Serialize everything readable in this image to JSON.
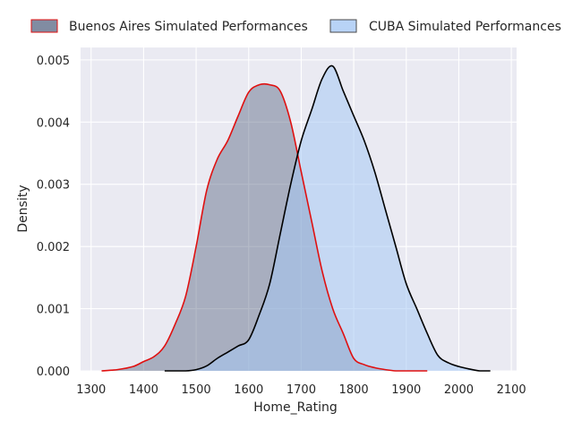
{
  "chart_data": {
    "type": "area",
    "title": "",
    "xlabel": "Home_Rating",
    "ylabel": "Density",
    "xlim": [
      1280,
      2110
    ],
    "ylim": [
      0,
      0.0052
    ],
    "xticks": [
      1300,
      1400,
      1500,
      1600,
      1700,
      1800,
      1900,
      2000,
      2100
    ],
    "xtick_labels": [
      "1300",
      "1400",
      "1500",
      "1600",
      "1700",
      "1800",
      "1900",
      "2000",
      "2100"
    ],
    "yticks": [
      0,
      0.001,
      0.002,
      0.003,
      0.004,
      0.005
    ],
    "ytick_labels": [
      "0.000",
      "0.001",
      "0.002",
      "0.003",
      "0.004",
      "0.005"
    ],
    "grid": true,
    "legend_position": "top",
    "series": [
      {
        "name": "Buenos Aires Simulated Performances",
        "fill": "#4c5b7a",
        "fill_opacity": 0.42,
        "line": "#e01010",
        "x": [
          1320,
          1350,
          1380,
          1400,
          1420,
          1440,
          1460,
          1480,
          1500,
          1520,
          1540,
          1560,
          1580,
          1600,
          1620,
          1640,
          1660,
          1680,
          1700,
          1720,
          1740,
          1760,
          1780,
          1800,
          1820,
          1840,
          1860,
          1880,
          1900,
          1920,
          1940
        ],
        "y": [
          0.0,
          2e-05,
          7e-05,
          0.00015,
          0.00023,
          0.0004,
          0.00075,
          0.0012,
          0.002,
          0.0029,
          0.0034,
          0.0037,
          0.0041,
          0.00448,
          0.0046,
          0.0046,
          0.0045,
          0.004,
          0.0032,
          0.0024,
          0.0016,
          0.001,
          0.0006,
          0.0002,
          0.0001,
          5e-05,
          2e-05,
          0.0,
          0.0,
          0.0,
          0.0
        ]
      },
      {
        "name": "CUBA Simulated Performances",
        "fill": "#a6c8f4",
        "fill_opacity": 0.55,
        "line": "#000000",
        "x": [
          1440,
          1480,
          1500,
          1520,
          1540,
          1560,
          1580,
          1600,
          1620,
          1640,
          1660,
          1680,
          1700,
          1720,
          1740,
          1760,
          1780,
          1800,
          1820,
          1840,
          1860,
          1880,
          1900,
          1920,
          1940,
          1960,
          1980,
          2000,
          2020,
          2040,
          2060
        ],
        "y": [
          0.0,
          0.0,
          2e-05,
          8e-05,
          0.0002,
          0.0003,
          0.0004,
          0.0005,
          0.0009,
          0.0014,
          0.0022,
          0.003,
          0.0037,
          0.0042,
          0.0047,
          0.0049,
          0.0045,
          0.0041,
          0.0037,
          0.0032,
          0.0026,
          0.002,
          0.0014,
          0.001,
          0.0006,
          0.00025,
          0.00013,
          7e-05,
          3e-05,
          0.0,
          0.0
        ]
      }
    ]
  }
}
